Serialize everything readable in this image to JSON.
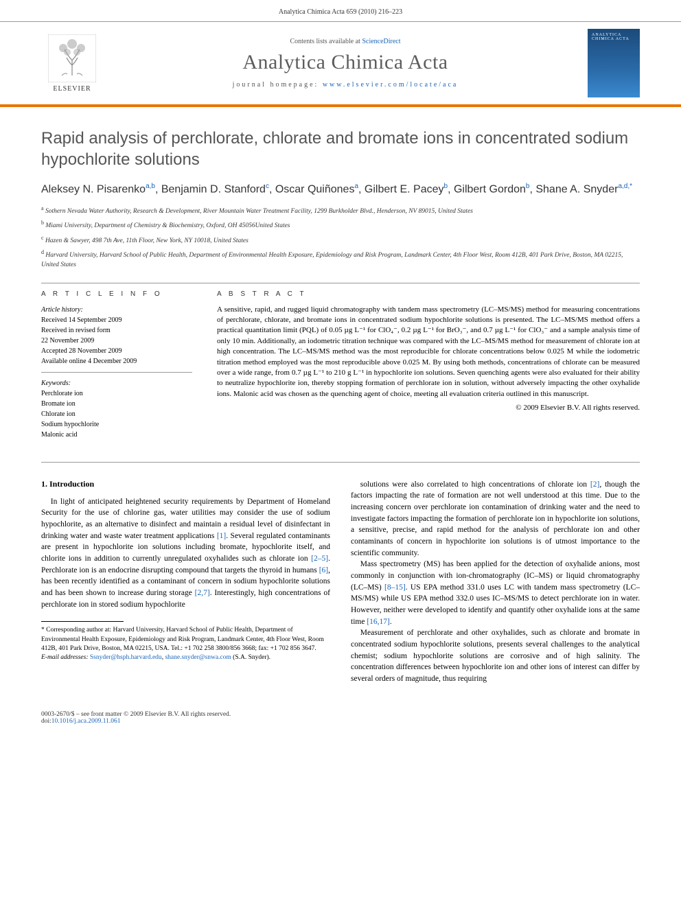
{
  "header": {
    "running_head": "Analytica Chimica Acta 659 (2010) 216–223"
  },
  "masthead": {
    "elsevier_label": "ELSEVIER",
    "contents_prefix": "Contents lists available at ",
    "contents_link": "ScienceDirect",
    "journal_name": "Analytica Chimica Acta",
    "homepage_prefix": "journal homepage: ",
    "homepage_url": "www.elsevier.com/locate/aca",
    "cover_text": "ANALYTICA CHIMICA ACTA"
  },
  "article": {
    "title": "Rapid analysis of perchlorate, chlorate and bromate ions in concentrated sodium hypochlorite solutions",
    "authors_html": "Aleksey N. Pisarenko<sup>a,b</sup>, Benjamin D. Stanford<sup>c</sup>, Oscar Quiñones<sup>a</sup>, Gilbert E. Pacey<sup>b</sup>, Gilbert Gordon<sup>b</sup>, Shane A. Snyder<sup>a,d,*</sup>",
    "affiliations": [
      "a Sothern Nevada Water Authority, Research & Development, River Mountain Water Treatment Facility, 1299 Burkholder Blvd., Henderson, NV 89015, United States",
      "b Miami University, Department of Chemistry & Biochemistry, Oxford, OH 45056United States",
      "c Hazen & Sawyer, 498 7th Ave, 11th Floor, New York, NY 10018, United States",
      "d Harvard University, Harvard School of Public Health, Department of Environmental Health Exposure, Epidemiology and Risk Program, Landmark Center, 4th Floor West, Room 412B, 401 Park Drive, Boston, MA 02215, United States"
    ]
  },
  "info": {
    "header": "A R T I C L E   I N F O",
    "history_label": "Article history:",
    "history": [
      "Received 14 September 2009",
      "Received in revised form",
      "22 November 2009",
      "Accepted 28 November 2009",
      "Available online 4 December 2009"
    ],
    "keywords_label": "Keywords:",
    "keywords": [
      "Perchlorate ion",
      "Bromate ion",
      "Chlorate ion",
      "Sodium hypochlorite",
      "Malonic acid"
    ]
  },
  "abstract": {
    "header": "A B S T R A C T",
    "text": "A sensitive, rapid, and rugged liquid chromatography with tandem mass spectrometry (LC–MS/MS) method for measuring concentrations of perchlorate, chlorate, and bromate ions in concentrated sodium hypochlorite solutions is presented. The LC–MS/MS method offers a practical quantitation limit (PQL) of 0.05 µg L⁻¹ for ClO₄⁻, 0.2 µg L⁻¹ for BrO₃⁻, and 0.7 µg L⁻¹ for ClO₃⁻ and a sample analysis time of only 10 min. Additionally, an iodometric titration technique was compared with the LC–MS/MS method for measurement of chlorate ion at high concentration. The LC–MS/MS method was the most reproducible for chlorate concentrations below 0.025 M while the iodometric titration method employed was the most reproducible above 0.025 M. By using both methods, concentrations of chlorate can be measured over a wide range, from 0.7 µg L⁻¹ to 210 g L⁻¹ in hypochlorite ion solutions. Seven quenching agents were also evaluated for their ability to neutralize hypochlorite ion, thereby stopping formation of perchlorate ion in solution, without adversely impacting the other oxyhalide ions. Malonic acid was chosen as the quenching agent of choice, meeting all evaluation criteria outlined in this manuscript.",
    "copyright": "© 2009 Elsevier B.V. All rights reserved."
  },
  "sections": {
    "intro_title": "1. Introduction",
    "p1": "In light of anticipated heightened security requirements by Department of Homeland Security for the use of chlorine gas, water utilities may consider the use of sodium hypochlorite, as an alternative to disinfect and maintain a residual level of disinfectant in drinking water and waste water treatment applications [1]. Several regulated contaminants are present in hypochlorite ion solutions including bromate, hypochlorite itself, and chlorite ions in addition to currently unregulated oxyhalides such as chlorate ion [2–5]. Perchlorate ion is an endocrine disrupting compound that targets the thyroid in humans [6], has been recently identified as a contaminant of concern in sodium hypochlorite solutions and has been shown to increase during storage [2,7]. Interestingly, high concentrations of perchlorate ion in stored sodium hypochlorite",
    "p2": "solutions were also correlated to high concentrations of chlorate ion [2], though the factors impacting the rate of formation are not well understood at this time. Due to the increasing concern over perchlorate ion contamination of drinking water and the need to investigate factors impacting the formation of perchlorate ion in hypochlorite ion solutions, a sensitive, precise, and rapid method for the analysis of perchlorate ion and other contaminants of concern in hypochlorite ion solutions is of utmost importance to the scientific community.",
    "p3": "Mass spectrometry (MS) has been applied for the detection of oxyhalide anions, most commonly in conjunction with ion-chromatography (IC–MS) or liquid chromatography (LC–MS) [8–15]. US EPA method 331.0 uses LC with tandem mass spectrometry (LC–MS/MS) while US EPA method 332.0 uses IC–MS/MS to detect perchlorate ion in water. However, neither were developed to identify and quantify other oxyhalide ions at the same time [16,17].",
    "p4": "Measurement of perchlorate and other oxyhalides, such as chlorate and bromate in concentrated sodium hypochlorite solutions, presents several challenges to the analytical chemist; sodium hypochlorite solutions are corrosive and of high salinity. The concentration differences between hypochlorite ion and other ions of interest can differ by several orders of magnitude, thus requiring"
  },
  "footnote": {
    "corr": "* Corresponding author at: Harvard University, Harvard School of Public Health, Department of Environmental Health Exposure, Epidemiology and Risk Program, Landmark Center, 4th Floor West, Room 412B, 401 Park Drive, Boston, MA 02215, USA. Tel.: +1 702 258 3800/856 3668; fax: +1 702 856 3647.",
    "email_label": "E-mail addresses:",
    "email1": "Ssnyder@hsph.harvard.edu",
    "email2": "shane.snyder@snwa.com",
    "email_suffix": "(S.A. Snyder)."
  },
  "footer": {
    "issn_line": "0003-2670/$ – see front matter © 2009 Elsevier B.V. All rights reserved.",
    "doi_label": "doi:",
    "doi": "10.1016/j.aca.2009.11.061"
  },
  "refs": {
    "r1": "[1]",
    "r2": "[2]",
    "r2_5": "[2–5]",
    "r6": "[6]",
    "r2_7": "[2,7]",
    "r8_15": "[8–15]",
    "r16_17": "[16,17]"
  },
  "colors": {
    "link": "#1864b9",
    "accent": "#e97400",
    "title_gray": "#555555"
  }
}
